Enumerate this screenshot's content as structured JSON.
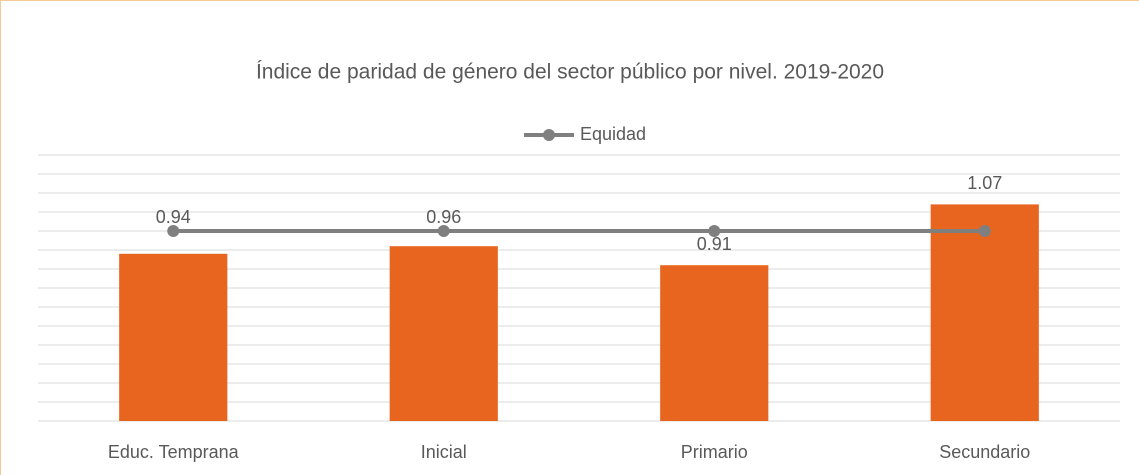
{
  "chart_data": {
    "type": "bar",
    "title": "Índice de paridad de género del sector público por nivel. 2019-2020",
    "categories": [
      "Educ. Temprana",
      "Inicial",
      "Primario",
      "Secundario"
    ],
    "values": [
      0.94,
      0.96,
      0.91,
      1.07
    ],
    "color": "#e8651f",
    "series": [
      {
        "name": "Equidad",
        "color": "#7f7f7f",
        "values": [
          1,
          1,
          1,
          1
        ]
      }
    ],
    "ylim": [
      0.5,
      1.2
    ],
    "yticks": [
      0.5,
      0.55,
      0.6,
      0.65,
      0.7,
      0.75,
      0.8,
      0.85,
      0.9,
      0.95,
      1,
      1.05,
      1.1,
      1.15,
      1.2
    ],
    "grid": true,
    "legend": "top"
  }
}
